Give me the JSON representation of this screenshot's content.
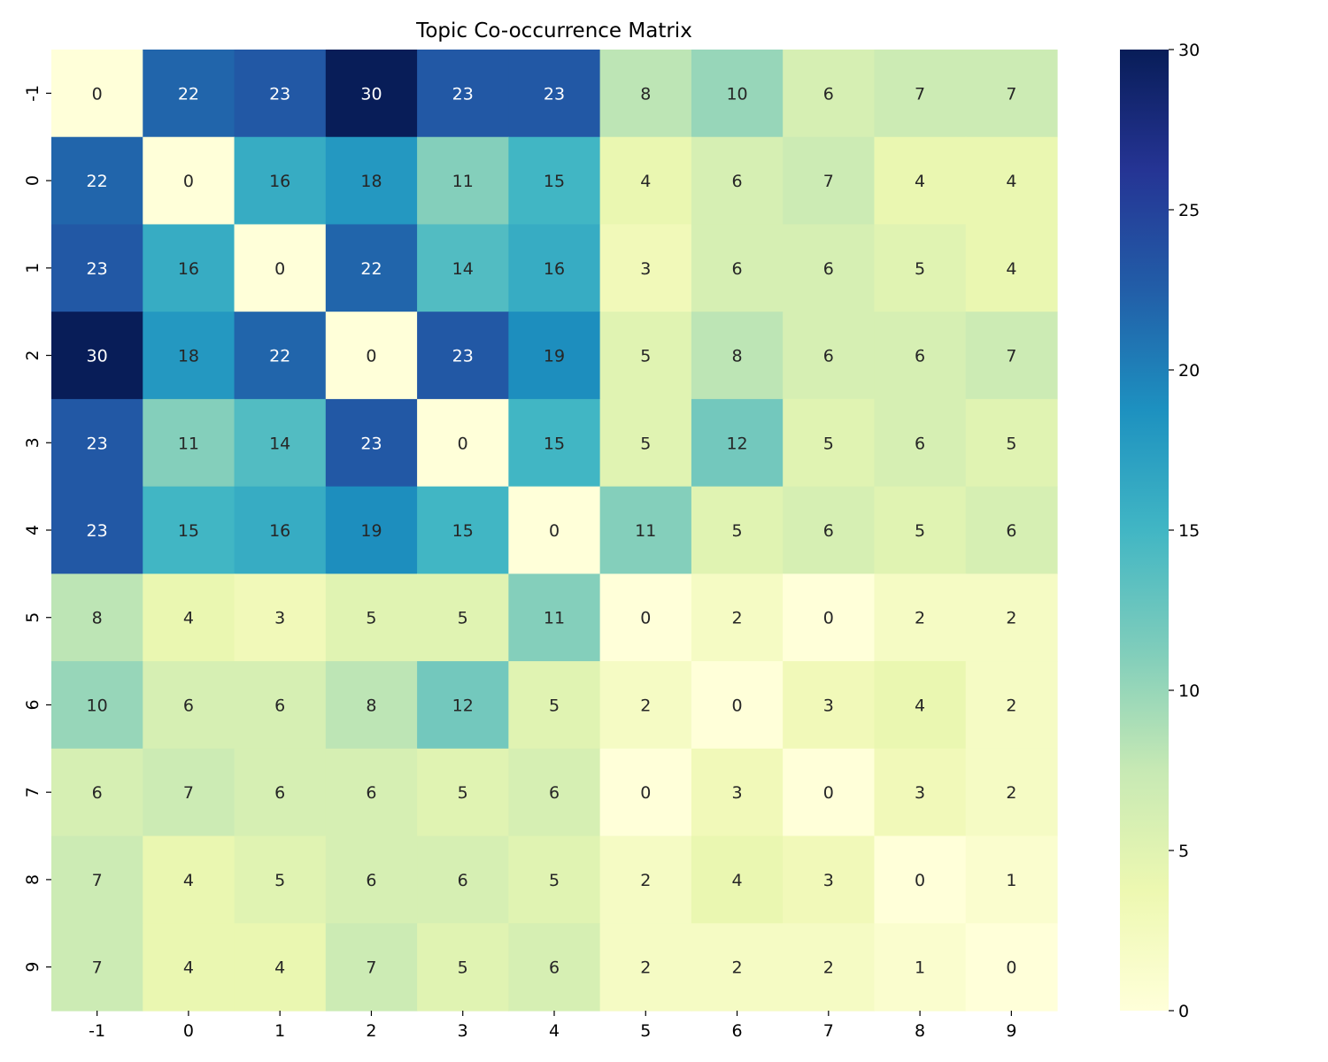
{
  "chart_data": {
    "type": "heatmap",
    "title": "Topic Co-occurrence Matrix",
    "xlabel": "",
    "ylabel": "",
    "x_categories": [
      "-1",
      "0",
      "1",
      "2",
      "3",
      "4",
      "5",
      "6",
      "7",
      "8",
      "9"
    ],
    "y_categories": [
      "-1",
      "0",
      "1",
      "2",
      "3",
      "4",
      "5",
      "6",
      "7",
      "8",
      "9"
    ],
    "values": [
      [
        0,
        22,
        23,
        30,
        23,
        23,
        8,
        10,
        6,
        7,
        7
      ],
      [
        22,
        0,
        16,
        18,
        11,
        15,
        4,
        6,
        7,
        4,
        4
      ],
      [
        23,
        16,
        0,
        22,
        14,
        16,
        3,
        6,
        6,
        5,
        4
      ],
      [
        30,
        18,
        22,
        0,
        23,
        19,
        5,
        8,
        6,
        6,
        7
      ],
      [
        23,
        11,
        14,
        23,
        0,
        15,
        5,
        12,
        5,
        6,
        5
      ],
      [
        23,
        15,
        16,
        19,
        15,
        0,
        11,
        5,
        6,
        5,
        6
      ],
      [
        8,
        4,
        3,
        5,
        5,
        11,
        0,
        2,
        0,
        2,
        2
      ],
      [
        10,
        6,
        6,
        8,
        12,
        5,
        2,
        0,
        3,
        4,
        2
      ],
      [
        6,
        7,
        6,
        6,
        5,
        6,
        0,
        3,
        0,
        3,
        2
      ],
      [
        7,
        4,
        5,
        6,
        6,
        5,
        2,
        4,
        3,
        0,
        1
      ],
      [
        7,
        4,
        4,
        7,
        5,
        6,
        2,
        2,
        2,
        1,
        0
      ]
    ],
    "colorbar": {
      "vmin": 0,
      "vmax": 30,
      "ticks": [
        0,
        5,
        10,
        15,
        20,
        25,
        30
      ],
      "colormap": "YlGnBu",
      "colors": [
        "#ffffd9",
        "#edf8b1",
        "#c7e9b4",
        "#7fcdbb",
        "#41b6c4",
        "#1d91c0",
        "#225ea8",
        "#253494",
        "#081d58"
      ]
    },
    "annotations": true,
    "annotation_colors": {
      "dark": "#262626",
      "light": "#ffffff"
    }
  }
}
